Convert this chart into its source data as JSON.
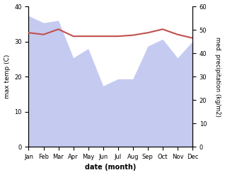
{
  "months": [
    "Jan",
    "Feb",
    "Mar",
    "Apr",
    "May",
    "Jun",
    "Jul",
    "Aug",
    "Sep",
    "Oct",
    "Nov",
    "Dec"
  ],
  "max_temp": [
    32.5,
    32.0,
    33.5,
    31.5,
    31.5,
    31.5,
    31.5,
    31.8,
    32.5,
    33.5,
    32.0,
    31.0
  ],
  "precipitation": [
    56,
    53,
    54,
    38,
    42,
    26,
    29,
    29,
    43,
    46,
    38,
    45
  ],
  "temp_color": "#c0504d",
  "precip_fill_color": "#c5caf0",
  "background_color": "#ffffff",
  "ylabel_left": "max temp (C)",
  "ylabel_right": "med. precipitation (kg/m2)",
  "xlabel": "date (month)",
  "ylim_left": [
    0,
    40
  ],
  "ylim_right": [
    0,
    60
  ],
  "yticks_left": [
    0,
    10,
    20,
    30,
    40
  ],
  "yticks_right": [
    0,
    10,
    20,
    30,
    40,
    50,
    60
  ]
}
